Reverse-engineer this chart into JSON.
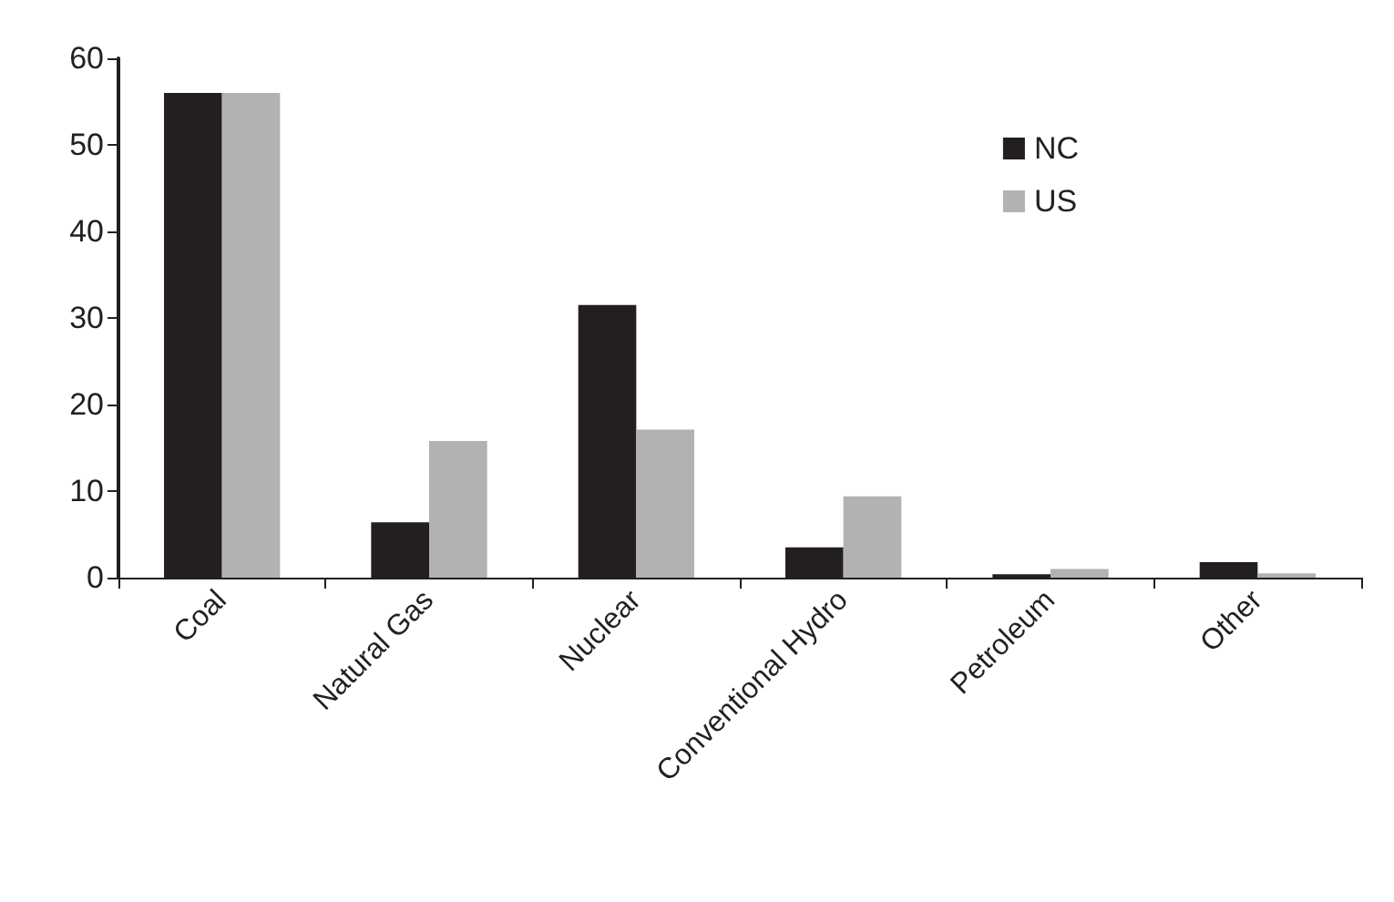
{
  "chart_data": {
    "type": "bar",
    "categories": [
      "Coal",
      "Natural Gas",
      "Nuclear",
      "Conventional Hydro",
      "Petroleum",
      "Other"
    ],
    "series": [
      {
        "name": "NC",
        "color": "#231f20",
        "values": [
          56,
          6.4,
          31.5,
          3.5,
          0.4,
          1.8
        ]
      },
      {
        "name": "US",
        "color": "#b1b2b4",
        "values": [
          56,
          15.8,
          17.1,
          9.4,
          1,
          0.5
        ]
      }
    ],
    "ylim": [
      0,
      60
    ],
    "yticks": [
      0,
      10,
      20,
      30,
      40,
      50,
      60
    ],
    "grid": false,
    "legend": "top right"
  }
}
